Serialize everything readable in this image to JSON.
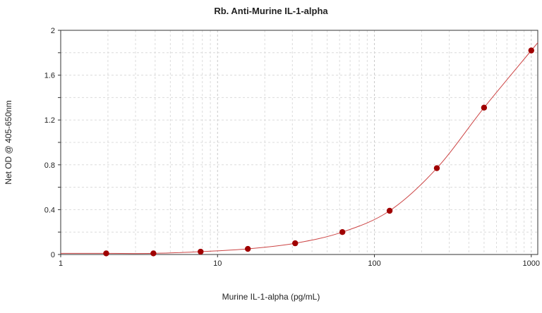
{
  "chart_data": {
    "type": "scatter",
    "title": "Rb. Anti-Murine IL-1-alpha",
    "xlabel": "Murine IL-1-alpha (pg/mL)",
    "ylabel": "Net OD @ 405-650nm",
    "xscale": "log",
    "xlim": [
      1,
      1100
    ],
    "ylim": [
      0,
      2
    ],
    "x_ticks": [
      "1",
      "10",
      "100",
      "1000"
    ],
    "y_ticks": [
      "0",
      "0.4",
      "0.8",
      "1.2",
      "1.6",
      "2"
    ],
    "grid": true,
    "series": [
      {
        "points": [
          {
            "x": 1.95,
            "y": 0.01
          },
          {
            "x": 3.9,
            "y": 0.01
          },
          {
            "x": 7.8,
            "y": 0.025
          },
          {
            "x": 15.6,
            "y": 0.05
          },
          {
            "x": 31.25,
            "y": 0.1
          },
          {
            "x": 62.5,
            "y": 0.2
          },
          {
            "x": 125,
            "y": 0.39
          },
          {
            "x": 250,
            "y": 0.77
          },
          {
            "x": 500,
            "y": 1.31
          },
          {
            "x": 1000,
            "y": 1.82
          }
        ],
        "fit_curve": true,
        "color": "#a00000",
        "line_color": "#cc4444"
      }
    ]
  }
}
